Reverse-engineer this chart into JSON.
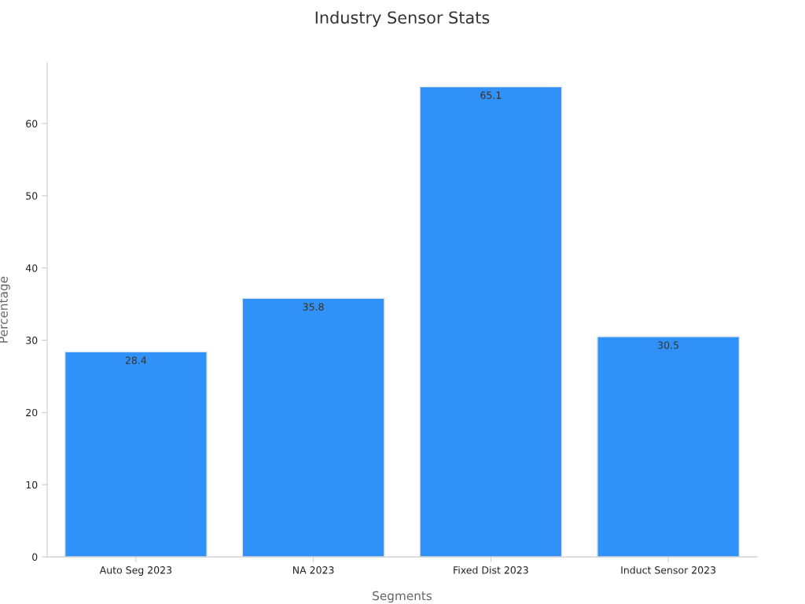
{
  "chart_data": {
    "type": "bar",
    "title": "Industry Sensor Stats",
    "xlabel": "Segments",
    "ylabel": "Percentage",
    "categories": [
      "Auto Seg 2023",
      "NA 2023",
      "Fixed Dist 2023",
      "Induct Sensor 2023"
    ],
    "values": [
      28.4,
      35.8,
      65.1,
      30.5
    ],
    "color": "#3092f8",
    "ylim": [
      0,
      68.4
    ],
    "yticks": [
      0,
      10,
      20,
      30,
      40,
      50,
      60
    ],
    "grid": false,
    "data_labels": true
  }
}
